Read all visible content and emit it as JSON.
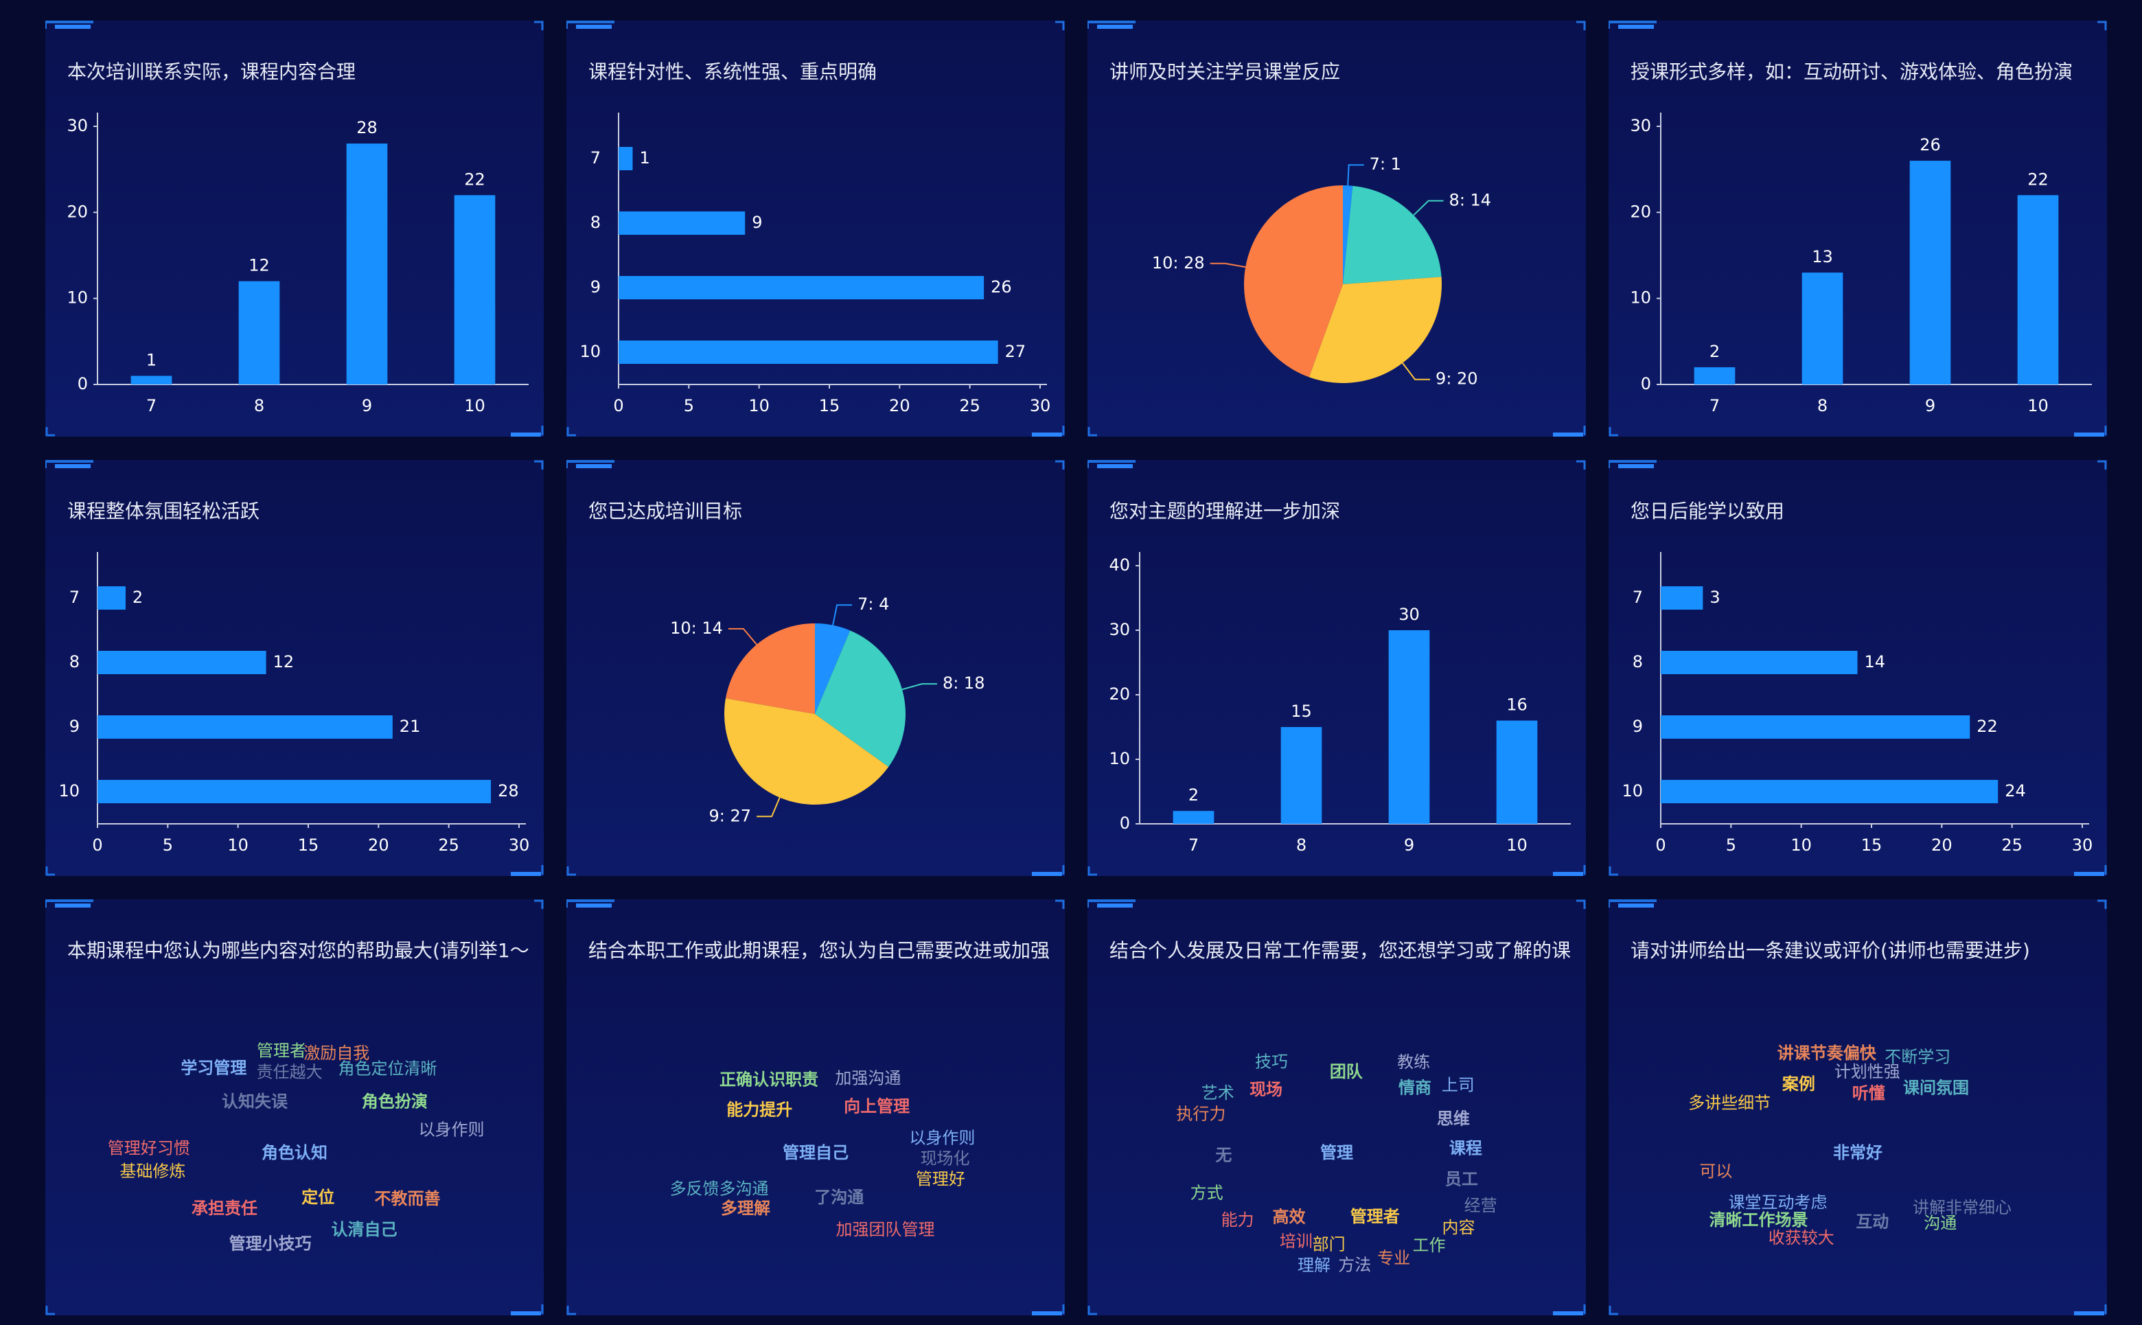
{
  "chart_data": [
    {
      "type": "bar",
      "title": "本次培训联系实际，课程内容合理",
      "categories": [
        "7",
        "8",
        "9",
        "10"
      ],
      "values": [
        1,
        12,
        28,
        22
      ],
      "color": "#1890ff",
      "ylim": [
        0,
        30
      ],
      "yticks": [
        0,
        10,
        20,
        30
      ]
    },
    {
      "type": "hbar",
      "title": "课程针对性、系统性强、重点明确",
      "categories": [
        "7",
        "8",
        "9",
        "10"
      ],
      "values": [
        1,
        9,
        26,
        27
      ],
      "color": "#1890ff",
      "xlim": [
        0,
        30
      ],
      "xticks": [
        0,
        5,
        10,
        15,
        20,
        25,
        30
      ]
    },
    {
      "type": "pie",
      "title": "讲师及时关注学员课堂反应",
      "categories": [
        "7",
        "8",
        "9",
        "10"
      ],
      "values": [
        1,
        14,
        20,
        28
      ],
      "value_labels": [
        "7: 1",
        "8: 14",
        "9: 20",
        "10: 28"
      ],
      "colors": [
        "#1e90ff",
        "#3dcfc2",
        "#fcc63d",
        "#fb7d43"
      ]
    },
    {
      "type": "bar",
      "title": "授课形式多样，如：互动研讨、游戏体验、角色扮演",
      "categories": [
        "7",
        "8",
        "9",
        "10"
      ],
      "values": [
        2,
        13,
        26,
        22
      ],
      "color": "#1890ff",
      "ylim": [
        0,
        30
      ],
      "yticks": [
        0,
        10,
        20,
        30
      ]
    },
    {
      "type": "hbar",
      "title": "课程整体氛围轻松活跃",
      "categories": [
        "7",
        "8",
        "9",
        "10"
      ],
      "values": [
        2,
        12,
        21,
        28
      ],
      "color": "#1890ff",
      "xlim": [
        0,
        30
      ],
      "xticks": [
        0,
        5,
        10,
        15,
        20,
        25,
        30
      ]
    },
    {
      "type": "pie",
      "title": "您已达成培训目标",
      "categories": [
        "7",
        "8",
        "9",
        "10"
      ],
      "values": [
        4,
        18,
        27,
        14
      ],
      "value_labels": [
        "7: 4",
        "8: 18",
        "9: 27",
        "10: 14"
      ],
      "colors": [
        "#1e90ff",
        "#3dcfc2",
        "#fcc63d",
        "#fb7d43"
      ]
    },
    {
      "type": "bar",
      "title": "您对主题的理解进一步加深",
      "categories": [
        "7",
        "8",
        "9",
        "10"
      ],
      "values": [
        2,
        15,
        30,
        16
      ],
      "color": "#1890ff",
      "ylim": [
        0,
        40
      ],
      "yticks": [
        0,
        10,
        20,
        30,
        40
      ]
    },
    {
      "type": "hbar",
      "title": "您日后能学以致用",
      "categories": [
        "7",
        "8",
        "9",
        "10"
      ],
      "values": [
        3,
        14,
        22,
        24
      ],
      "color": "#1890ff",
      "xlim": [
        0,
        30
      ],
      "xticks": [
        0,
        5,
        10,
        15,
        20,
        25,
        30
      ]
    },
    {
      "type": "wordcloud",
      "title": "本期课程中您认为哪些内容对您的帮助最大(请列举1～",
      "palette": [
        "#7eb0f5",
        "#6c7ca8",
        "#f8c94a",
        "#f06b6b",
        "#8fd98f",
        "#e8855a",
        "#5ab3c2",
        "#a0a8d0"
      ],
      "words": [
        {
          "text": "角色认知",
          "weight": 40
        },
        {
          "text": "认知失误",
          "weight": 30
        },
        {
          "text": "定位",
          "weight": 22
        },
        {
          "text": "承担责任",
          "weight": 20
        },
        {
          "text": "角色扮演",
          "weight": 18
        },
        {
          "text": "不教而善",
          "weight": 16
        },
        {
          "text": "认清自己",
          "weight": 16
        },
        {
          "text": "管理小技巧",
          "weight": 14
        },
        {
          "text": "学习管理",
          "weight": 14
        },
        {
          "text": "责任越大",
          "weight": 10
        },
        {
          "text": "基础修炼",
          "weight": 9
        },
        {
          "text": "管理好习惯",
          "weight": 9
        },
        {
          "text": "管理者",
          "weight": 9
        },
        {
          "text": "激励自我",
          "weight": 8
        },
        {
          "text": "角色定位清晰",
          "weight": 8
        },
        {
          "text": "以身作则",
          "weight": 8
        }
      ]
    },
    {
      "type": "wordcloud",
      "title": "结合本职工作或此期课程，您认为自己需要改进或加强",
      "palette": [
        "#7eb0f5",
        "#6c7ca8",
        "#f8c94a",
        "#f06b6b",
        "#8fd98f",
        "#e8855a",
        "#5ab3c2",
        "#a0a8d0"
      ],
      "words": [
        {
          "text": "管理自己",
          "weight": 34
        },
        {
          "text": "了沟通",
          "weight": 28
        },
        {
          "text": "能力提升",
          "weight": 20
        },
        {
          "text": "向上管理",
          "weight": 20
        },
        {
          "text": "正确认识职责",
          "weight": 16
        },
        {
          "text": "多理解",
          "weight": 16
        },
        {
          "text": "多反馈多沟通",
          "weight": 10
        },
        {
          "text": "加强沟通",
          "weight": 10
        },
        {
          "text": "以身作则",
          "weight": 10
        },
        {
          "text": "现场化",
          "weight": 10
        },
        {
          "text": "管理好",
          "weight": 9
        },
        {
          "text": "加强团队管理",
          "weight": 9
        }
      ]
    },
    {
      "type": "wordcloud",
      "title": "结合个人发展及日常工作需要，您还想学习或了解的课",
      "palette": [
        "#7eb0f5",
        "#6c7ca8",
        "#f8c94a",
        "#f06b6b",
        "#8fd98f",
        "#e8855a",
        "#5ab3c2",
        "#a0a8d0"
      ],
      "words": [
        {
          "text": "管理",
          "weight": 60
        },
        {
          "text": "无",
          "weight": 40
        },
        {
          "text": "管理者",
          "weight": 26
        },
        {
          "text": "现场",
          "weight": 24
        },
        {
          "text": "团队",
          "weight": 24
        },
        {
          "text": "高效",
          "weight": 20
        },
        {
          "text": "情商",
          "weight": 18
        },
        {
          "text": "思维",
          "weight": 18
        },
        {
          "text": "课程",
          "weight": 18
        },
        {
          "text": "员工",
          "weight": 18
        },
        {
          "text": "部门",
          "weight": 12
        },
        {
          "text": "能力",
          "weight": 12
        },
        {
          "text": "方式",
          "weight": 12
        },
        {
          "text": "执行力",
          "weight": 12
        },
        {
          "text": "技巧",
          "weight": 12
        },
        {
          "text": "教练",
          "weight": 12
        },
        {
          "text": "上司",
          "weight": 12
        },
        {
          "text": "经营",
          "weight": 12
        },
        {
          "text": "内容",
          "weight": 12
        },
        {
          "text": "培训",
          "weight": 11
        },
        {
          "text": "工作",
          "weight": 11
        },
        {
          "text": "专业",
          "weight": 11
        },
        {
          "text": "艺术",
          "weight": 10
        },
        {
          "text": "方法",
          "weight": 10
        },
        {
          "text": "理解",
          "weight": 10
        }
      ]
    },
    {
      "type": "wordcloud",
      "title": "请对讲师给出一条建议或评价(讲师也需要进步)",
      "palette": [
        "#7eb0f5",
        "#6c7ca8",
        "#f8c94a",
        "#f06b6b",
        "#8fd98f",
        "#e8855a",
        "#5ab3c2",
        "#a0a8d0"
      ],
      "words": [
        {
          "text": "非常好",
          "weight": 60
        },
        {
          "text": "互动",
          "weight": 34
        },
        {
          "text": "案例",
          "weight": 28
        },
        {
          "text": "听懂",
          "weight": 16
        },
        {
          "text": "清晰工作场景",
          "weight": 14
        },
        {
          "text": "讲课节奏偏快",
          "weight": 14
        },
        {
          "text": "课间氛围",
          "weight": 14
        },
        {
          "text": "计划性强",
          "weight": 10
        },
        {
          "text": "课堂互动考虑",
          "weight": 8
        },
        {
          "text": "讲解非常细心",
          "weight": 8
        },
        {
          "text": "多讲些细节",
          "weight": 8
        },
        {
          "text": "收获较大",
          "weight": 8
        },
        {
          "text": "沟通",
          "weight": 8
        },
        {
          "text": "可以",
          "weight": 8
        },
        {
          "text": "不断学习",
          "weight": 8
        }
      ]
    }
  ]
}
